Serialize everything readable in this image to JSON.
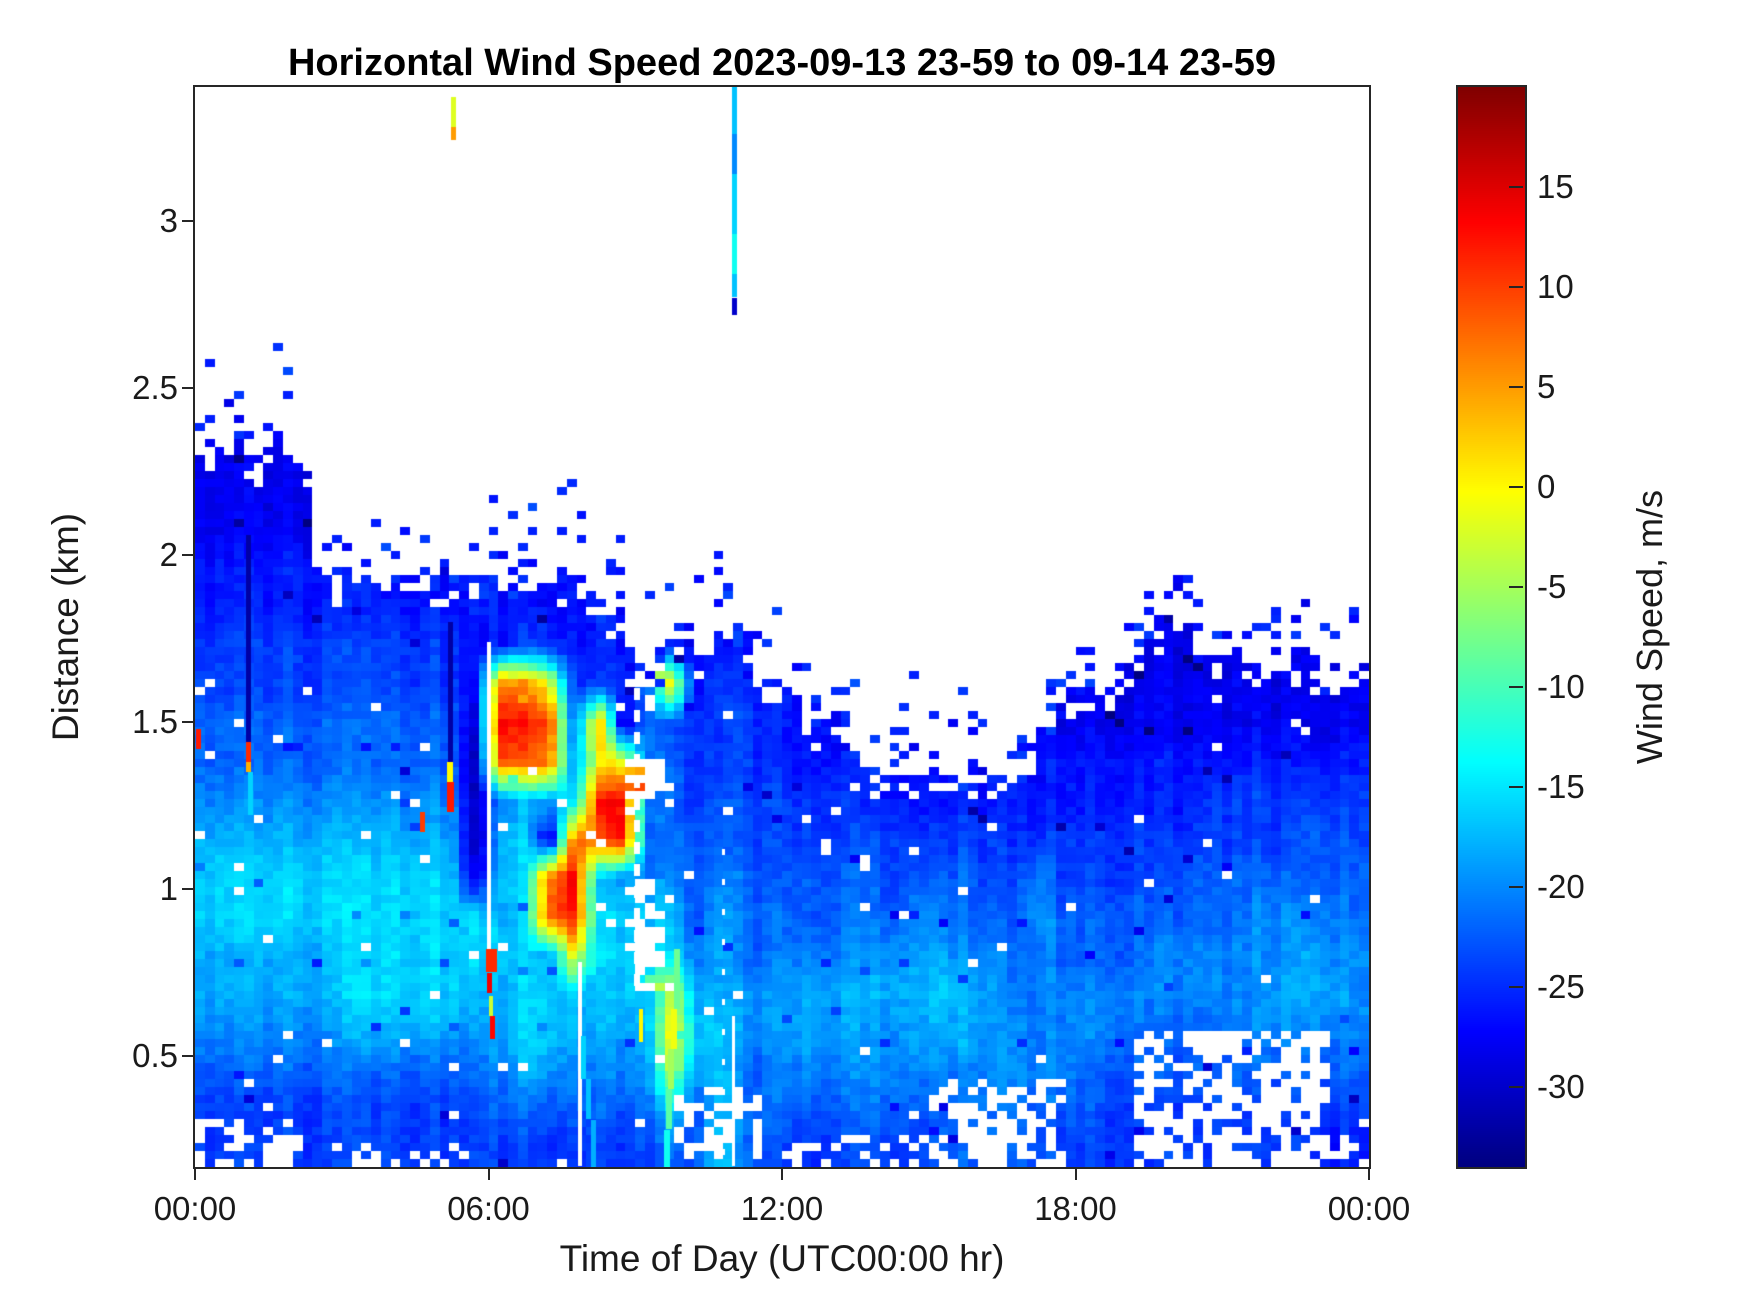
{
  "title": "Horizontal Wind Speed 2023-09-13 23-59 to 09-14 23-59",
  "axes": {
    "x": {
      "label": "Time of Day (UTC00:00 hr)",
      "range_hours": [
        0,
        24
      ],
      "tick_hours": [
        0,
        6,
        12,
        18,
        24
      ],
      "tick_labels": [
        "00:00",
        "06:00",
        "12:00",
        "18:00",
        "00:00"
      ]
    },
    "y": {
      "label": "Distance (km)",
      "range_km": [
        0.168,
        3.4
      ],
      "tick_values": [
        0.5,
        1,
        1.5,
        2,
        2.5,
        3
      ],
      "tick_labels": [
        "0.5",
        "1",
        "1.5",
        "2",
        "2.5",
        "3"
      ]
    }
  },
  "colorbar": {
    "label": "Wind Speed, m/s",
    "colormap": "jet",
    "vmin": -34,
    "vmax": 20,
    "tick_values": [
      15,
      10,
      5,
      0,
      -5,
      -10,
      -15,
      -20,
      -25,
      -30
    ],
    "tick_labels": [
      "15",
      "10",
      "5",
      "0",
      "-5",
      "-10",
      "-15",
      "-20",
      "-25",
      "-30"
    ]
  },
  "chart_data": {
    "type": "heatmap",
    "title": "Horizontal Wind Speed 2023-09-13 23-59 to 09-14 23-59",
    "xlabel": "Time of Day (UTC00:00 hr)",
    "ylabel": "Distance (km)",
    "value_label": "Wind Speed, m/s",
    "x_range_hours": [
      0,
      24
    ],
    "y_range_km": [
      0.168,
      3.4
    ],
    "value_range_ms": [
      -34,
      20
    ],
    "grid": {
      "comment": "Coarse time-height grid of wind speed (m/s). 48 columns = 30-min bins from 00:00; each string is one column, chars bottom-to-top in 28 height bins of 0.1154 km starting at 0.168 km. '.' or missing = no data (white).",
      "t_start_hours": 0.25,
      "t_step_hours": 0.5,
      "h_start_km": 0.2257,
      "h_step_km": 0.11543,
      "rows_per_column": 28,
      "encoding": {
        ".": null,
        "a": -32,
        "b": -30,
        "c": -28,
        "d": -26,
        "e": -24,
        "f": -22,
        "g": -20,
        "h": -18,
        "i": -16,
        "j": -14,
        "k": -12,
        "l": -10,
        "m": -8,
        "n": -6,
        "o": -4,
        "p": -2,
        "q": 0,
        "r": 2,
        "s": 4,
        "t": 6,
        "u": 8,
        "v": 10,
        "w": 12,
        "x": 14,
        "y": 16,
        "z": 18
      },
      "columns": [
        "eefghhiihgffeeddcc",
        "eefghhiihgffeeddccc",
        "eefghhiihgffeeddcc",
        "eefghhiihgffeeddccc",
        "eefghhiihgffeeddcc",
        "eefghhiihgffeed",
        "eefhiiiihgffeed",
        "eefhiiiihgffeed",
        "eefhiiiihgffeed",
        "eefhiiiihgffeed",
        "eefhiiiihgffeed",
        "eefghiibaaabccd",
        "efghhihihgvxudd",
        "efhiiiiiihuwted",
        "efhiihvubhuvqed",
        "efghiqwxuigfedd",
        "efghhiihuwqsed",
        "efghiiihxxqbed",
        "efgh....f..f",
        "fioqoihgfffeqd",
        ".fhihgfffeeed",
        "iiiihhhgffe.ed",
        "fffggfffeeeed",
        "effggffeeedd",
        "efghhgffeedd",
        "efghhgffeed",
        "efghhgffeed",
        "efgghgffed",
        "efgghgfeed",
        "efghhhgfed",
        ".fghihgfed",
        ".fghhgffed",
        "..gghgfeed",
        ".fggffeedd",
        ".fgggghgedd",
        "efgggffeeddc",
        "effggffeeddc",
        "eefggffeeddc",
        "eeffgffeeddcc",
        "eeffggfeeddccc",
        "eeffggffeddccc",
        "eeffggffeedcc",
        "eefgggffeedcc",
        "eefggggfeedcc",
        "eefghggfeedcc",
        "eefghhgffedcc",
        "defghggffedc",
        "defgggffeedcc"
      ]
    },
    "streaks": {
      "comment": "Narrow vertical features: t = hours, h0-h1 = km extent, v = wind speed m/s or 'white' for missing-data line, w = line width px, dash = [on,off] px.",
      "items": [
        {
          "t": 0.08,
          "h0": 1.42,
          "h1": 1.48,
          "v": 12,
          "w": 5
        },
        {
          "t": 1.1,
          "h0": 1.44,
          "h1": 2.06,
          "v": -32,
          "w": 5
        },
        {
          "t": 1.1,
          "h0": 1.38,
          "h1": 1.44,
          "v": 11,
          "w": 5
        },
        {
          "t": 1.1,
          "h0": 1.35,
          "h1": 1.38,
          "v": 4,
          "w": 5
        },
        {
          "t": 1.13,
          "h0": 1.22,
          "h1": 1.35,
          "v": -16,
          "w": 5
        },
        {
          "t": 4.66,
          "h0": 1.17,
          "h1": 1.23,
          "v": 10,
          "w": 5
        },
        {
          "t": 5.22,
          "h0": 1.38,
          "h1": 1.8,
          "v": -32,
          "w": 5
        },
        {
          "t": 5.22,
          "h0": 1.32,
          "h1": 1.38,
          "v": 0,
          "w": 6
        },
        {
          "t": 5.22,
          "h0": 1.23,
          "h1": 1.32,
          "v": 12,
          "w": 7
        },
        {
          "t": 5.28,
          "h0": 3.28,
          "h1": 3.37,
          "v": -2,
          "w": 5
        },
        {
          "t": 5.28,
          "h0": 3.24,
          "h1": 3.28,
          "v": 5,
          "w": 5
        },
        {
          "t": 6.02,
          "h0": 0.82,
          "h1": 1.74,
          "v": "white",
          "w": 4
        },
        {
          "t": 6.06,
          "h0": 0.75,
          "h1": 0.82,
          "v": 11,
          "w": 11
        },
        {
          "t": 6.03,
          "h0": 0.69,
          "h1": 0.75,
          "v": 14,
          "w": 5
        },
        {
          "t": 6.06,
          "h0": 0.62,
          "h1": 0.68,
          "v": -3,
          "w": 4
        },
        {
          "t": 6.08,
          "h0": 0.55,
          "h1": 0.62,
          "v": 13,
          "w": 5
        },
        {
          "t": 7.87,
          "h0": 0.17,
          "h1": 0.78,
          "v": "white",
          "w": 4
        },
        {
          "t": 7.95,
          "h0": 0.43,
          "h1": 0.56,
          "v": -16,
          "w": 5
        },
        {
          "t": 8.05,
          "h0": 0.31,
          "h1": 0.43,
          "v": -17,
          "w": 5
        },
        {
          "t": 8.15,
          "h0": 0.17,
          "h1": 0.31,
          "v": -18,
          "w": 5
        },
        {
          "t": 9.04,
          "h0": 0.68,
          "h1": 1.6,
          "v": "white",
          "w": 6,
          "dash": [
            12,
            10
          ]
        },
        {
          "t": 9.12,
          "h0": 0.54,
          "h1": 0.64,
          "v": 0,
          "w": 4
        },
        {
          "t": 9.86,
          "h0": 0.64,
          "h1": 0.82,
          "v": -8,
          "w": 6
        },
        {
          "t": 9.8,
          "h0": 0.52,
          "h1": 0.64,
          "v": -1,
          "w": 6
        },
        {
          "t": 9.74,
          "h0": 0.4,
          "h1": 0.52,
          "v": -5,
          "w": 6
        },
        {
          "t": 9.68,
          "h0": 0.28,
          "h1": 0.4,
          "v": -9,
          "w": 6
        },
        {
          "t": 9.64,
          "h0": 0.17,
          "h1": 0.28,
          "v": -13,
          "w": 6
        },
        {
          "t": 10.8,
          "h0": 0.17,
          "h1": 1.12,
          "v": "white",
          "w": 3,
          "dash": [
            6,
            24
          ]
        },
        {
          "t": 11.0,
          "h0": 0.17,
          "h1": 0.62,
          "v": "white",
          "w": 3
        },
        {
          "t": 11.02,
          "h0": 2.72,
          "h1": 2.77,
          "v": -30,
          "w": 5
        },
        {
          "t": 11.02,
          "h0": 2.77,
          "h1": 2.84,
          "v": -17,
          "w": 5
        },
        {
          "t": 11.02,
          "h0": 2.84,
          "h1": 2.96,
          "v": -13,
          "w": 5
        },
        {
          "t": 11.02,
          "h0": 2.96,
          "h1": 3.14,
          "v": -16,
          "w": 5
        },
        {
          "t": 11.02,
          "h0": 3.14,
          "h1": 3.26,
          "v": -20,
          "w": 5
        },
        {
          "t": 11.02,
          "h0": 3.26,
          "h1": 3.4,
          "v": -17,
          "w": 5
        }
      ]
    },
    "no_data_regions": {
      "comment": "Speckled white (missing data) erosion zones near bottom of profile; p = hole probability.",
      "items": [
        {
          "t0": 0.0,
          "t1": 2.2,
          "h0": 0.17,
          "h1": 0.3,
          "p": 0.5
        },
        {
          "t0": 2.2,
          "t1": 5.5,
          "h0": 0.17,
          "h1": 0.24,
          "p": 0.25
        },
        {
          "t0": 9.8,
          "t1": 11.6,
          "h0": 0.17,
          "h1": 0.4,
          "p": 0.45
        },
        {
          "t0": 12.3,
          "t1": 14.9,
          "h0": 0.17,
          "h1": 0.26,
          "p": 0.2
        },
        {
          "t0": 15.1,
          "t1": 17.7,
          "h0": 0.17,
          "h1": 0.42,
          "p": 0.5
        },
        {
          "t0": 19.3,
          "t1": 23.2,
          "h0": 0.17,
          "h1": 0.58,
          "p": 0.6
        },
        {
          "t0": 23.2,
          "t1": 24.0,
          "h0": 0.17,
          "h1": 0.34,
          "p": 0.35
        }
      ]
    }
  }
}
